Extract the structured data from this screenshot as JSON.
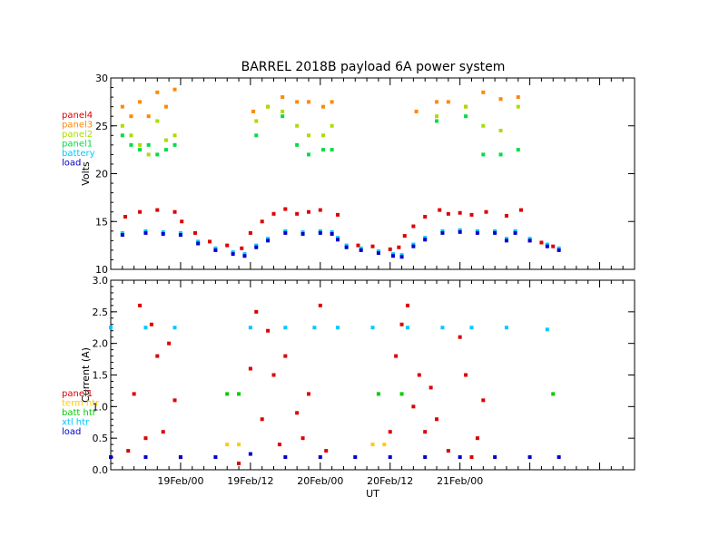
{
  "title": "BARREL 2018B payload 6A power system",
  "colors": {
    "panel4": "#dd0000",
    "panel3": "#ff8800",
    "panel2": "#aadd00",
    "panel1": "#00dd44",
    "battery": "#00c8ff",
    "load": "#0000cc",
    "term_htr": "#ffcc00",
    "batt_htr": "#00cc00",
    "xtl_htr": "#00c8ff",
    "axis": "#000000"
  },
  "chart_data": [
    {
      "type": "scatter",
      "ylabel": "Volts",
      "ylim": [
        10,
        30
      ],
      "yticks": [
        "10",
        "15",
        "20",
        "25",
        "30"
      ],
      "xlim_hours": [
        -12,
        78
      ],
      "legend": [
        "panel4",
        "panel3",
        "panel2",
        "panel1",
        "battery",
        "load"
      ],
      "legend_placement": "left",
      "series": [
        {
          "name": "panel4",
          "color_key": "panel4",
          "points": [
            [
              -9.5,
              15.5
            ],
            [
              -7,
              16.0
            ],
            [
              -4,
              16.2
            ],
            [
              -1,
              16.0
            ],
            [
              0.2,
              15.0
            ],
            [
              2.5,
              13.8
            ],
            [
              5,
              12.9
            ],
            [
              8,
              12.5
            ],
            [
              10.5,
              12.2
            ],
            [
              12,
              13.8
            ],
            [
              14,
              15.0
            ],
            [
              16,
              15.8
            ],
            [
              18,
              16.3
            ],
            [
              20,
              15.8
            ],
            [
              22,
              16.0
            ],
            [
              24,
              16.2
            ],
            [
              27,
              15.7
            ],
            [
              30.5,
              12.5
            ],
            [
              33,
              12.4
            ],
            [
              36,
              12.1
            ],
            [
              37.5,
              12.3
            ],
            [
              38.5,
              13.5
            ],
            [
              40,
              14.5
            ],
            [
              42,
              15.5
            ],
            [
              44.5,
              16.2
            ],
            [
              46,
              15.8
            ],
            [
              48,
              15.9
            ],
            [
              50,
              15.7
            ],
            [
              52.5,
              16.0
            ],
            [
              56,
              15.6
            ],
            [
              58.5,
              16.2
            ],
            [
              60,
              13.0
            ],
            [
              62,
              12.8
            ],
            [
              64,
              12.4
            ]
          ]
        },
        {
          "name": "panel3",
          "color_key": "panel3",
          "points": [
            [
              -10,
              27
            ],
            [
              -8.5,
              26
            ],
            [
              -7,
              27.5
            ],
            [
              -5.5,
              26
            ],
            [
              -4,
              28.5
            ],
            [
              -2.5,
              27
            ],
            [
              -1,
              28.8
            ],
            [
              12.5,
              26.5
            ],
            [
              15,
              27
            ],
            [
              17.5,
              28
            ],
            [
              20,
              27.5
            ],
            [
              22,
              27.5
            ],
            [
              24.5,
              27
            ],
            [
              26,
              27.5
            ],
            [
              40.5,
              26.5
            ],
            [
              44,
              27.5
            ],
            [
              46,
              27.5
            ],
            [
              49,
              27
            ],
            [
              52,
              28.5
            ],
            [
              55,
              27.8
            ],
            [
              58,
              28
            ]
          ]
        },
        {
          "name": "panel2",
          "color_key": "panel2",
          "points": [
            [
              -10,
              25
            ],
            [
              -8.5,
              24
            ],
            [
              -7,
              23
            ],
            [
              -5.5,
              22
            ],
            [
              -4,
              25.5
            ],
            [
              -2.5,
              23.5
            ],
            [
              -1,
              24
            ],
            [
              13,
              25.5
            ],
            [
              15,
              27
            ],
            [
              17.5,
              26.5
            ],
            [
              20,
              25
            ],
            [
              22,
              24
            ],
            [
              24.5,
              24
            ],
            [
              26,
              25
            ],
            [
              44,
              26
            ],
            [
              49,
              27
            ],
            [
              52,
              25
            ],
            [
              55,
              24.5
            ],
            [
              58,
              27
            ]
          ]
        },
        {
          "name": "panel1",
          "color_key": "panel1",
          "points": [
            [
              -10,
              24
            ],
            [
              -8.5,
              23
            ],
            [
              -7,
              22.5
            ],
            [
              -5.5,
              23
            ],
            [
              -4,
              22
            ],
            [
              -2.5,
              22.5
            ],
            [
              -1,
              23
            ],
            [
              13,
              24
            ],
            [
              17.5,
              26
            ],
            [
              20,
              23
            ],
            [
              22,
              22
            ],
            [
              24.5,
              22.5
            ],
            [
              26,
              22.5
            ],
            [
              44,
              25.5
            ],
            [
              49,
              26
            ],
            [
              52,
              22
            ],
            [
              55,
              22
            ],
            [
              58,
              22.5
            ]
          ]
        },
        {
          "name": "battery",
          "color_key": "battery",
          "points": [
            [
              -10,
              13.8
            ],
            [
              -6,
              14.0
            ],
            [
              -3,
              13.9
            ],
            [
              0,
              13.8
            ],
            [
              3,
              12.9
            ],
            [
              6,
              12.2
            ],
            [
              9,
              11.8
            ],
            [
              11,
              11.6
            ],
            [
              13,
              12.5
            ],
            [
              15,
              13.2
            ],
            [
              18,
              14.0
            ],
            [
              21,
              13.9
            ],
            [
              24,
              14.0
            ],
            [
              26,
              13.9
            ],
            [
              27,
              13.3
            ],
            [
              28.5,
              12.5
            ],
            [
              31,
              12.2
            ],
            [
              34,
              11.9
            ],
            [
              36.5,
              11.6
            ],
            [
              38,
              11.5
            ],
            [
              40,
              12.6
            ],
            [
              42,
              13.3
            ],
            [
              45,
              14.0
            ],
            [
              48,
              14.1
            ],
            [
              51,
              14.0
            ],
            [
              54,
              14.0
            ],
            [
              56,
              13.2
            ],
            [
              57.5,
              14.0
            ],
            [
              60,
              13.2
            ],
            [
              63,
              12.6
            ],
            [
              65,
              12.2
            ]
          ]
        },
        {
          "name": "load",
          "color_key": "load",
          "points": [
            [
              -10,
              13.6
            ],
            [
              -6,
              13.8
            ],
            [
              -3,
              13.7
            ],
            [
              0,
              13.6
            ],
            [
              3,
              12.7
            ],
            [
              6,
              12.0
            ],
            [
              9,
              11.6
            ],
            [
              11,
              11.4
            ],
            [
              13,
              12.3
            ],
            [
              15,
              13.0
            ],
            [
              18,
              13.8
            ],
            [
              21,
              13.7
            ],
            [
              24,
              13.8
            ],
            [
              26,
              13.7
            ],
            [
              27,
              13.1
            ],
            [
              28.5,
              12.3
            ],
            [
              31,
              12.0
            ],
            [
              34,
              11.7
            ],
            [
              36.5,
              11.4
            ],
            [
              38,
              11.3
            ],
            [
              40,
              12.4
            ],
            [
              42,
              13.1
            ],
            [
              45,
              13.8
            ],
            [
              48,
              13.9
            ],
            [
              51,
              13.8
            ],
            [
              54,
              13.8
            ],
            [
              56,
              13.0
            ],
            [
              57.5,
              13.8
            ],
            [
              60,
              13.0
            ],
            [
              63,
              12.4
            ],
            [
              65,
              12.0
            ]
          ]
        }
      ]
    },
    {
      "type": "scatter",
      "ylabel": "Current (A)",
      "xlabel": "UT",
      "ylim": [
        0,
        3
      ],
      "yticks": [
        "0.0",
        "0.5",
        "1.0",
        "1.5",
        "2.0",
        "2.5",
        "3.0"
      ],
      "xlim_hours": [
        -12,
        78
      ],
      "xticks": [
        {
          "hour": 0,
          "label": "19Feb/00"
        },
        {
          "hour": 12,
          "label": "19Feb/12"
        },
        {
          "hour": 24,
          "label": "20Feb/00"
        },
        {
          "hour": 36,
          "label": "20Feb/12"
        },
        {
          "hour": 48,
          "label": "21Feb/00"
        }
      ],
      "legend": [
        "panel1",
        "term htr",
        "batt htr",
        "xtl htr",
        "load"
      ],
      "legend_placement": "left",
      "series": [
        {
          "name": "panel1",
          "color_key": "panel4",
          "points": [
            [
              -9,
              0.3
            ],
            [
              -8,
              1.2
            ],
            [
              -7,
              2.6
            ],
            [
              -6,
              0.5
            ],
            [
              -5,
              2.3
            ],
            [
              -4,
              1.8
            ],
            [
              -3,
              0.6
            ],
            [
              -2,
              2.0
            ],
            [
              -1,
              1.1
            ],
            [
              0,
              0.2
            ],
            [
              10,
              0.1
            ],
            [
              12,
              1.6
            ],
            [
              13,
              2.5
            ],
            [
              14,
              0.8
            ],
            [
              15,
              2.2
            ],
            [
              16,
              1.5
            ],
            [
              17,
              0.4
            ],
            [
              18,
              1.8
            ],
            [
              20,
              0.9
            ],
            [
              21,
              0.5
            ],
            [
              22,
              1.2
            ],
            [
              24,
              2.6
            ],
            [
              25,
              0.3
            ],
            [
              36,
              0.6
            ],
            [
              37,
              1.8
            ],
            [
              38,
              2.3
            ],
            [
              39,
              2.6
            ],
            [
              40,
              1.0
            ],
            [
              41,
              1.5
            ],
            [
              42,
              0.6
            ],
            [
              43,
              1.3
            ],
            [
              44,
              0.8
            ],
            [
              46,
              0.3
            ],
            [
              48,
              2.1
            ],
            [
              49,
              1.5
            ],
            [
              50,
              0.2
            ],
            [
              51,
              0.5
            ],
            [
              52,
              1.1
            ]
          ]
        },
        {
          "name": "term htr",
          "color_key": "term_htr",
          "points": [
            [
              8,
              0.4
            ],
            [
              10,
              0.4
            ],
            [
              33,
              0.4
            ],
            [
              35,
              0.4
            ]
          ]
        },
        {
          "name": "batt htr",
          "color_key": "batt_htr",
          "points": [
            [
              8,
              1.2
            ],
            [
              10,
              1.2
            ],
            [
              34,
              1.2
            ],
            [
              38,
              1.2
            ],
            [
              64,
              1.2
            ]
          ]
        },
        {
          "name": "xtl htr",
          "color_key": "xtl_htr",
          "points": [
            [
              -12,
              2.25
            ],
            [
              -6,
              2.25
            ],
            [
              -1,
              2.25
            ],
            [
              12,
              2.25
            ],
            [
              18,
              2.25
            ],
            [
              23,
              2.25
            ],
            [
              27,
              2.25
            ],
            [
              33,
              2.25
            ],
            [
              39,
              2.25
            ],
            [
              45,
              2.25
            ],
            [
              50,
              2.25
            ],
            [
              56,
              2.25
            ],
            [
              63,
              2.22
            ]
          ]
        },
        {
          "name": "load",
          "color_key": "load",
          "points": [
            [
              -12,
              0.2
            ],
            [
              -6,
              0.2
            ],
            [
              0,
              0.2
            ],
            [
              6,
              0.2
            ],
            [
              12,
              0.25
            ],
            [
              18,
              0.2
            ],
            [
              24,
              0.2
            ],
            [
              30,
              0.2
            ],
            [
              36,
              0.2
            ],
            [
              42,
              0.2
            ],
            [
              48,
              0.2
            ],
            [
              54,
              0.2
            ],
            [
              60,
              0.2
            ],
            [
              65,
              0.2
            ]
          ]
        }
      ]
    }
  ]
}
